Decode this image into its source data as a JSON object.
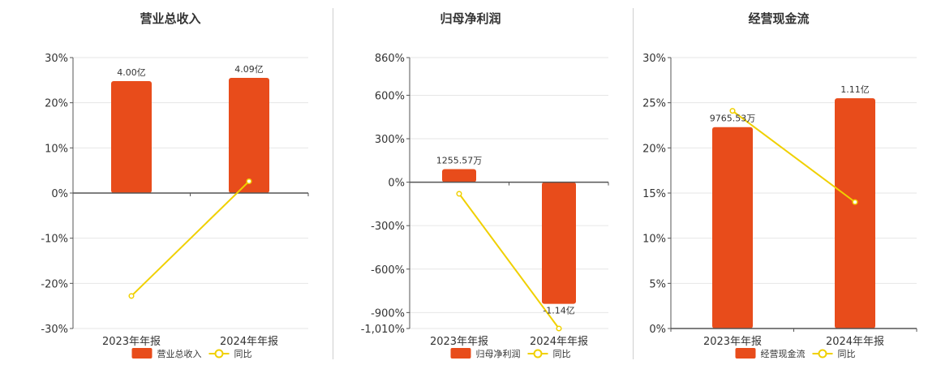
{
  "colors": {
    "bar": "#e84c1b",
    "line": "#f0d000",
    "grid": "#e6e6e6",
    "axis": "#555555"
  },
  "legend": {
    "line_label": "同比"
  },
  "chart_data": [
    {
      "type": "bar",
      "title": "营业总收入",
      "categories": [
        "2023年年报",
        "2024年年报"
      ],
      "series": [
        {
          "name": "营业总收入",
          "type": "bar",
          "values": [
            0.248,
            0.255
          ]
        },
        {
          "name": "同比",
          "type": "line",
          "values": [
            -0.228,
            0.026
          ]
        }
      ],
      "data_labels": [
        "4.00亿",
        "4.09亿"
      ],
      "ylim": [
        -0.3,
        0.3
      ],
      "yticks": [
        0.3,
        0.2,
        0.1,
        0,
        -0.1,
        -0.2,
        -0.3
      ],
      "ytick_labels": [
        "30%",
        "20%",
        "10%",
        "0%",
        "-10%",
        "-20%",
        "-30%"
      ],
      "grid": true,
      "legend_position": "bottom"
    },
    {
      "type": "bar",
      "title": "归母净利润",
      "categories": [
        "2023年年报",
        "2024年年报"
      ],
      "series": [
        {
          "name": "归母净利润",
          "type": "bar",
          "values": [
            0.9,
            -8.4
          ]
        },
        {
          "name": "同比",
          "type": "line",
          "values": [
            -0.8,
            -10.1
          ]
        }
      ],
      "data_labels": [
        "1255.57万",
        "-1.14亿"
      ],
      "ylim": [
        -10.1,
        8.6
      ],
      "yticks": [
        8.6,
        6.0,
        3.0,
        0,
        -3.0,
        -6.0,
        -9.0,
        -10.1
      ],
      "ytick_labels": [
        "860%",
        "600%",
        "300%",
        "0%",
        "-300%",
        "-600%",
        "-900%",
        "-1,010%"
      ],
      "grid": true,
      "legend_position": "bottom"
    },
    {
      "type": "bar",
      "title": "经营现金流",
      "categories": [
        "2023年年报",
        "2024年年报"
      ],
      "series": [
        {
          "name": "经营现金流",
          "type": "bar",
          "values": [
            0.223,
            0.255
          ]
        },
        {
          "name": "同比",
          "type": "line",
          "values": [
            0.241,
            0.14
          ]
        }
      ],
      "data_labels": [
        "9765.53万",
        "1.11亿"
      ],
      "ylim": [
        0,
        0.3
      ],
      "yticks": [
        0.3,
        0.25,
        0.2,
        0.15,
        0.1,
        0.05,
        0
      ],
      "ytick_labels": [
        "30%",
        "25%",
        "20%",
        "15%",
        "10%",
        "5%",
        "0%"
      ],
      "grid": true,
      "legend_position": "bottom"
    }
  ]
}
